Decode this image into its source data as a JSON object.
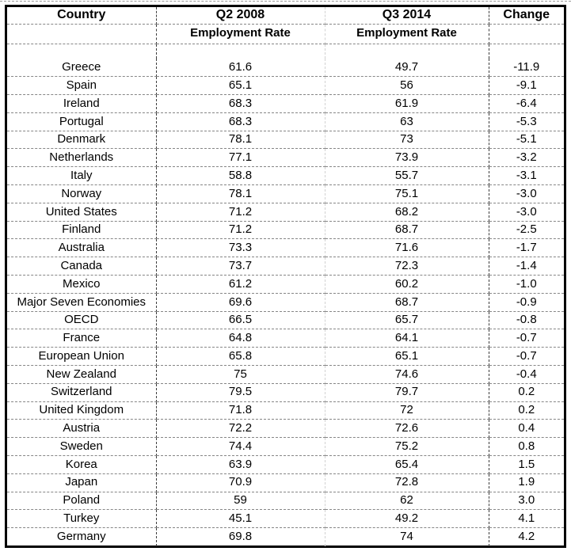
{
  "colors": {
    "outer_border": "#000000",
    "row_gridline_dash": "#868686",
    "column_dark_dash": "#3d3d3d",
    "column_light_dash": "#d2d2d2",
    "text": "#000000",
    "background": "#ffffff"
  },
  "chart_data": {
    "type": "table",
    "header_row1": [
      "Country",
      "Q2 2008",
      "Q3 2014",
      "Change"
    ],
    "header_row2": [
      "",
      "Employment Rate",
      "Employment Rate",
      ""
    ],
    "columns": [
      "Country",
      "Q2 2008 Employment Rate",
      "Q3 2014 Employment Rate",
      "Change"
    ],
    "rows": [
      [
        "Greece",
        "61.6",
        "49.7",
        "-11.9"
      ],
      [
        "Spain",
        "65.1",
        "56",
        "-9.1"
      ],
      [
        "Ireland",
        "68.3",
        "61.9",
        "-6.4"
      ],
      [
        "Portugal",
        "68.3",
        "63",
        "-5.3"
      ],
      [
        "Denmark",
        "78.1",
        "73",
        "-5.1"
      ],
      [
        "Netherlands",
        "77.1",
        "73.9",
        "-3.2"
      ],
      [
        "Italy",
        "58.8",
        "55.7",
        "-3.1"
      ],
      [
        "Norway",
        "78.1",
        "75.1",
        "-3.0"
      ],
      [
        "United States",
        "71.2",
        "68.2",
        "-3.0"
      ],
      [
        "Finland",
        "71.2",
        "68.7",
        "-2.5"
      ],
      [
        "Australia",
        "73.3",
        "71.6",
        "-1.7"
      ],
      [
        "Canada",
        "73.7",
        "72.3",
        "-1.4"
      ],
      [
        "Mexico",
        "61.2",
        "60.2",
        "-1.0"
      ],
      [
        "Major Seven Economies",
        "69.6",
        "68.7",
        "-0.9"
      ],
      [
        "OECD",
        "66.5",
        "65.7",
        "-0.8"
      ],
      [
        "France",
        "64.8",
        "64.1",
        "-0.7"
      ],
      [
        "European Union",
        "65.8",
        "65.1",
        "-0.7"
      ],
      [
        "New Zealand",
        "75",
        "74.6",
        "-0.4"
      ],
      [
        "Switzerland",
        "79.5",
        "79.7",
        "0.2"
      ],
      [
        "United Kingdom",
        "71.8",
        "72",
        "0.2"
      ],
      [
        "Austria",
        "72.2",
        "72.6",
        "0.4"
      ],
      [
        "Sweden",
        "74.4",
        "75.2",
        "0.8"
      ],
      [
        "Korea",
        "63.9",
        "65.4",
        "1.5"
      ],
      [
        "Japan",
        "70.9",
        "72.8",
        "1.9"
      ],
      [
        "Poland",
        "59",
        "62",
        "3.0"
      ],
      [
        "Turkey",
        "45.1",
        "49.2",
        "4.1"
      ],
      [
        "Germany",
        "69.8",
        "74",
        "4.2"
      ]
    ]
  }
}
